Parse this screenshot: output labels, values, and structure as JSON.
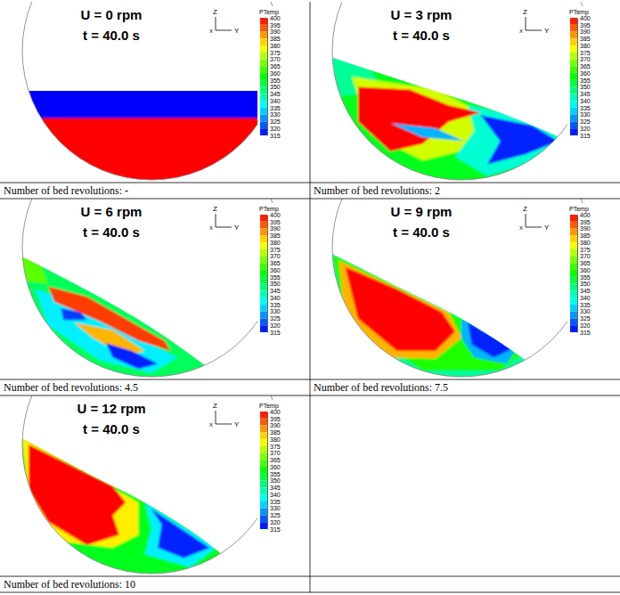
{
  "chart_data": [
    {
      "type": "contour",
      "title": "U = 0 rpm",
      "subtitle": "t = 40.0 s",
      "caption": "Number of bed revolutions: -",
      "axis_labels": {
        "x": "X",
        "y": "Y",
        "z": "Z"
      },
      "xlim": [
        -1,
        1
      ],
      "ylim": [
        -1,
        1
      ],
      "colorbar_label": "PTemp",
      "colorbar_range": [
        315,
        400
      ],
      "colorbar_ticks": [
        400,
        395,
        390,
        385,
        380,
        375,
        370,
        365,
        360,
        355,
        350,
        345,
        340,
        335,
        330,
        325,
        320,
        315
      ],
      "bed_surface": [
        [
          -1.1,
          -0.31
        ],
        [
          1.1,
          -0.31
        ]
      ],
      "base_temperature": 400,
      "regions": [
        {
          "temperature": 315,
          "points": [
            [
              -1.1,
              -0.2
            ],
            [
              1.1,
              -0.2
            ],
            [
              1.1,
              -0.52
            ],
            [
              -1.1,
              -0.52
            ]
          ]
        }
      ]
    },
    {
      "type": "contour",
      "title": "U = 3 rpm",
      "subtitle": "t = 40.0 s",
      "caption": "Number of bed revolutions: 2",
      "axis_labels": {
        "x": "X",
        "y": "Y",
        "z": "Z"
      },
      "xlim": [
        -1,
        1
      ],
      "ylim": [
        -1,
        1
      ],
      "colorbar_label": "PTemp",
      "colorbar_range": [
        315,
        400
      ],
      "colorbar_ticks": [
        400,
        395,
        390,
        385,
        380,
        375,
        370,
        365,
        360,
        355,
        350,
        345,
        340,
        335,
        330,
        325,
        320,
        315
      ],
      "bed_surface": [
        [
          -1.1,
          -0.02
        ],
        [
          -0.4,
          -0.25
        ],
        [
          0.3,
          -0.48
        ],
        [
          1.1,
          -0.82
        ]
      ],
      "base_temperature": 355,
      "regions": [
        {
          "temperature": 345,
          "points": [
            [
              -1.05,
              0.0
            ],
            [
              -0.7,
              -0.15
            ],
            [
              -0.6,
              -0.32
            ],
            [
              -0.95,
              -0.35
            ]
          ]
        },
        {
          "temperature": 375,
          "points": [
            [
              -0.85,
              -0.2
            ],
            [
              -0.2,
              -0.3
            ],
            [
              0.2,
              -0.5
            ],
            [
              0.1,
              -0.75
            ],
            [
              -0.3,
              -0.85
            ],
            [
              -0.7,
              -0.65
            ]
          ]
        },
        {
          "temperature": 340,
          "points": [
            [
              0.05,
              -0.42
            ],
            [
              0.5,
              -0.52
            ],
            [
              0.8,
              -0.7
            ],
            [
              0.6,
              -0.85
            ],
            [
              0.2,
              -0.97
            ],
            [
              -0.05,
              -0.82
            ],
            [
              0.1,
              -0.62
            ]
          ]
        },
        {
          "temperature": 318,
          "points": [
            [
              0.15,
              -0.5
            ],
            [
              0.55,
              -0.58
            ],
            [
              0.75,
              -0.7
            ],
            [
              0.5,
              -0.8
            ],
            [
              0.2,
              -0.88
            ],
            [
              0.3,
              -0.7
            ]
          ]
        },
        {
          "temperature": 400,
          "points": [
            [
              -0.8,
              -0.28
            ],
            [
              -0.4,
              -0.3
            ],
            [
              -0.1,
              -0.42
            ],
            [
              0.15,
              -0.48
            ],
            [
              -0.1,
              -0.55
            ],
            [
              -0.3,
              -0.72
            ],
            [
              -0.55,
              -0.78
            ],
            [
              -0.8,
              -0.55
            ]
          ]
        },
        {
          "temperature": 330,
          "points": [
            [
              -0.55,
              -0.56
            ],
            [
              -0.2,
              -0.6
            ],
            [
              0.02,
              -0.7
            ],
            [
              -0.3,
              -0.67
            ]
          ]
        }
      ]
    },
    {
      "type": "contour",
      "title": "U = 6 rpm",
      "subtitle": "t = 40.0 s",
      "caption": "Number of bed revolutions: 4.5",
      "axis_labels": {
        "x": "X",
        "y": "Y",
        "z": "Z"
      },
      "xlim": [
        -1,
        1
      ],
      "ylim": [
        -1,
        1
      ],
      "colorbar_label": "PTemp",
      "colorbar_range": [
        315,
        400
      ],
      "colorbar_ticks": [
        400,
        395,
        390,
        385,
        380,
        375,
        370,
        365,
        360,
        355,
        350,
        345,
        340,
        335,
        330,
        325,
        320,
        315
      ],
      "bed_surface": [
        [
          -1.1,
          -0.02
        ],
        [
          -0.5,
          -0.33
        ],
        [
          0.0,
          -0.62
        ],
        [
          0.6,
          -1.05
        ]
      ],
      "base_temperature": 350,
      "regions": [
        {
          "temperature": 365,
          "points": [
            [
              -1.05,
              0.0
            ],
            [
              -0.85,
              -0.15
            ],
            [
              -0.8,
              -0.28
            ],
            [
              -1.05,
              -0.25
            ]
          ]
        },
        {
          "temperature": 335,
          "points": [
            [
              -0.9,
              -0.32
            ],
            [
              -0.5,
              -0.45
            ],
            [
              -0.1,
              -0.7
            ],
            [
              0.2,
              -0.85
            ],
            [
              0.0,
              -0.97
            ],
            [
              -0.4,
              -0.87
            ],
            [
              -0.8,
              -0.6
            ]
          ]
        },
        {
          "temperature": 395,
          "points": [
            [
              -0.8,
              -0.3
            ],
            [
              -0.5,
              -0.38
            ],
            [
              -0.2,
              -0.55
            ],
            [
              0.1,
              -0.72
            ],
            [
              0.15,
              -0.8
            ],
            [
              -0.1,
              -0.72
            ],
            [
              -0.4,
              -0.57
            ],
            [
              -0.75,
              -0.42
            ]
          ]
        },
        {
          "temperature": 385,
          "points": [
            [
              -0.6,
              -0.58
            ],
            [
              -0.3,
              -0.64
            ],
            [
              -0.05,
              -0.8
            ],
            [
              -0.2,
              -0.84
            ],
            [
              -0.45,
              -0.7
            ]
          ]
        },
        {
          "temperature": 318,
          "points": [
            [
              -0.35,
              -0.74
            ],
            [
              -0.15,
              -0.8
            ],
            [
              0.05,
              -0.9
            ],
            [
              -0.1,
              -0.94
            ],
            [
              -0.3,
              -0.85
            ]
          ]
        },
        {
          "temperature": 320,
          "points": [
            [
              -0.7,
              -0.47
            ],
            [
              -0.55,
              -0.5
            ],
            [
              -0.5,
              -0.56
            ],
            [
              -0.68,
              -0.56
            ]
          ]
        }
      ]
    },
    {
      "type": "contour",
      "title": "U = 9 rpm",
      "subtitle": "t = 40.0 s",
      "caption": "Number of bed revolutions: 7.5",
      "axis_labels": {
        "x": "X",
        "y": "Y",
        "z": "Z"
      },
      "xlim": [
        -1,
        1
      ],
      "ylim": [
        -1,
        1
      ],
      "colorbar_label": "PTemp",
      "colorbar_range": [
        315,
        400
      ],
      "colorbar_ticks": [
        400,
        395,
        390,
        385,
        380,
        375,
        370,
        365,
        360,
        355,
        350,
        345,
        340,
        335,
        330,
        325,
        320,
        315
      ],
      "bed_surface": [
        [
          -1.1,
          0.0
        ],
        [
          -0.5,
          -0.3
        ],
        [
          0.0,
          -0.55
        ],
        [
          0.6,
          -0.95
        ],
        [
          0.9,
          -1.2
        ]
      ],
      "base_temperature": 345,
      "regions": [
        {
          "temperature": 360,
          "points": [
            [
              -1.0,
              -0.05
            ],
            [
              0.5,
              -0.8
            ],
            [
              0.3,
              -0.95
            ],
            [
              -0.3,
              -0.95
            ],
            [
              -0.9,
              -0.55
            ]
          ]
        },
        {
          "temperature": 385,
          "points": [
            [
              -0.95,
              -0.1
            ],
            [
              -0.1,
              -0.5
            ],
            [
              0.0,
              -0.7
            ],
            [
              -0.2,
              -0.86
            ],
            [
              -0.6,
              -0.85
            ],
            [
              -0.9,
              -0.55
            ]
          ]
        },
        {
          "temperature": 400,
          "points": [
            [
              -0.9,
              -0.15
            ],
            [
              -0.5,
              -0.32
            ],
            [
              -0.15,
              -0.5
            ],
            [
              -0.05,
              -0.65
            ],
            [
              -0.2,
              -0.8
            ],
            [
              -0.5,
              -0.8
            ],
            [
              -0.8,
              -0.55
            ]
          ]
        },
        {
          "temperature": 330,
          "points": [
            [
              0.0,
              -0.55
            ],
            [
              0.45,
              -0.75
            ],
            [
              0.35,
              -0.9
            ],
            [
              0.1,
              -0.85
            ],
            [
              0.0,
              -0.7
            ]
          ]
        },
        {
          "temperature": 318,
          "points": [
            [
              0.05,
              -0.58
            ],
            [
              0.4,
              -0.78
            ],
            [
              0.25,
              -0.85
            ],
            [
              0.08,
              -0.75
            ]
          ]
        }
      ]
    },
    {
      "type": "contour",
      "title": "U = 12 rpm",
      "subtitle": "t = 40.0 s",
      "caption": "Number of bed revolutions: 10",
      "axis_labels": {
        "x": "X",
        "y": "Y",
        "z": "Z"
      },
      "xlim": [
        -1,
        1
      ],
      "ylim": [
        -1,
        1
      ],
      "colorbar_label": "PTemp",
      "colorbar_range": [
        315,
        400
      ],
      "colorbar_ticks": [
        400,
        395,
        390,
        385,
        380,
        375,
        370,
        365,
        360,
        355,
        350,
        345,
        340,
        335,
        330,
        325,
        320,
        315
      ],
      "bed_surface": [
        [
          -1.1,
          0.1
        ],
        [
          -0.5,
          -0.22
        ],
        [
          0.0,
          -0.48
        ],
        [
          0.6,
          -0.9
        ],
        [
          0.9,
          -1.2
        ]
      ],
      "base_temperature": 355,
      "regions": [
        {
          "temperature": 380,
          "points": [
            [
              -1.0,
              0.05
            ],
            [
              -0.1,
              -0.45
            ],
            [
              -0.1,
              -0.7
            ],
            [
              -0.3,
              -0.8
            ],
            [
              -0.7,
              -0.75
            ],
            [
              -0.95,
              -0.4
            ]
          ]
        },
        {
          "temperature": 400,
          "points": [
            [
              -0.95,
              0.0
            ],
            [
              -0.3,
              -0.32
            ],
            [
              -0.2,
              -0.45
            ],
            [
              -0.3,
              -0.55
            ],
            [
              -0.25,
              -0.7
            ],
            [
              -0.5,
              -0.78
            ],
            [
              -0.8,
              -0.6
            ],
            [
              -0.95,
              -0.35
            ]
          ]
        },
        {
          "temperature": 335,
          "points": [
            [
              -0.05,
              -0.45
            ],
            [
              0.5,
              -0.8
            ],
            [
              0.3,
              -0.95
            ],
            [
              -0.05,
              -0.85
            ],
            [
              0.0,
              -0.65
            ]
          ]
        },
        {
          "temperature": 318,
          "points": [
            [
              0.0,
              -0.5
            ],
            [
              0.45,
              -0.8
            ],
            [
              0.25,
              -0.88
            ],
            [
              0.05,
              -0.8
            ],
            [
              0.08,
              -0.62
            ]
          ]
        }
      ]
    }
  ]
}
